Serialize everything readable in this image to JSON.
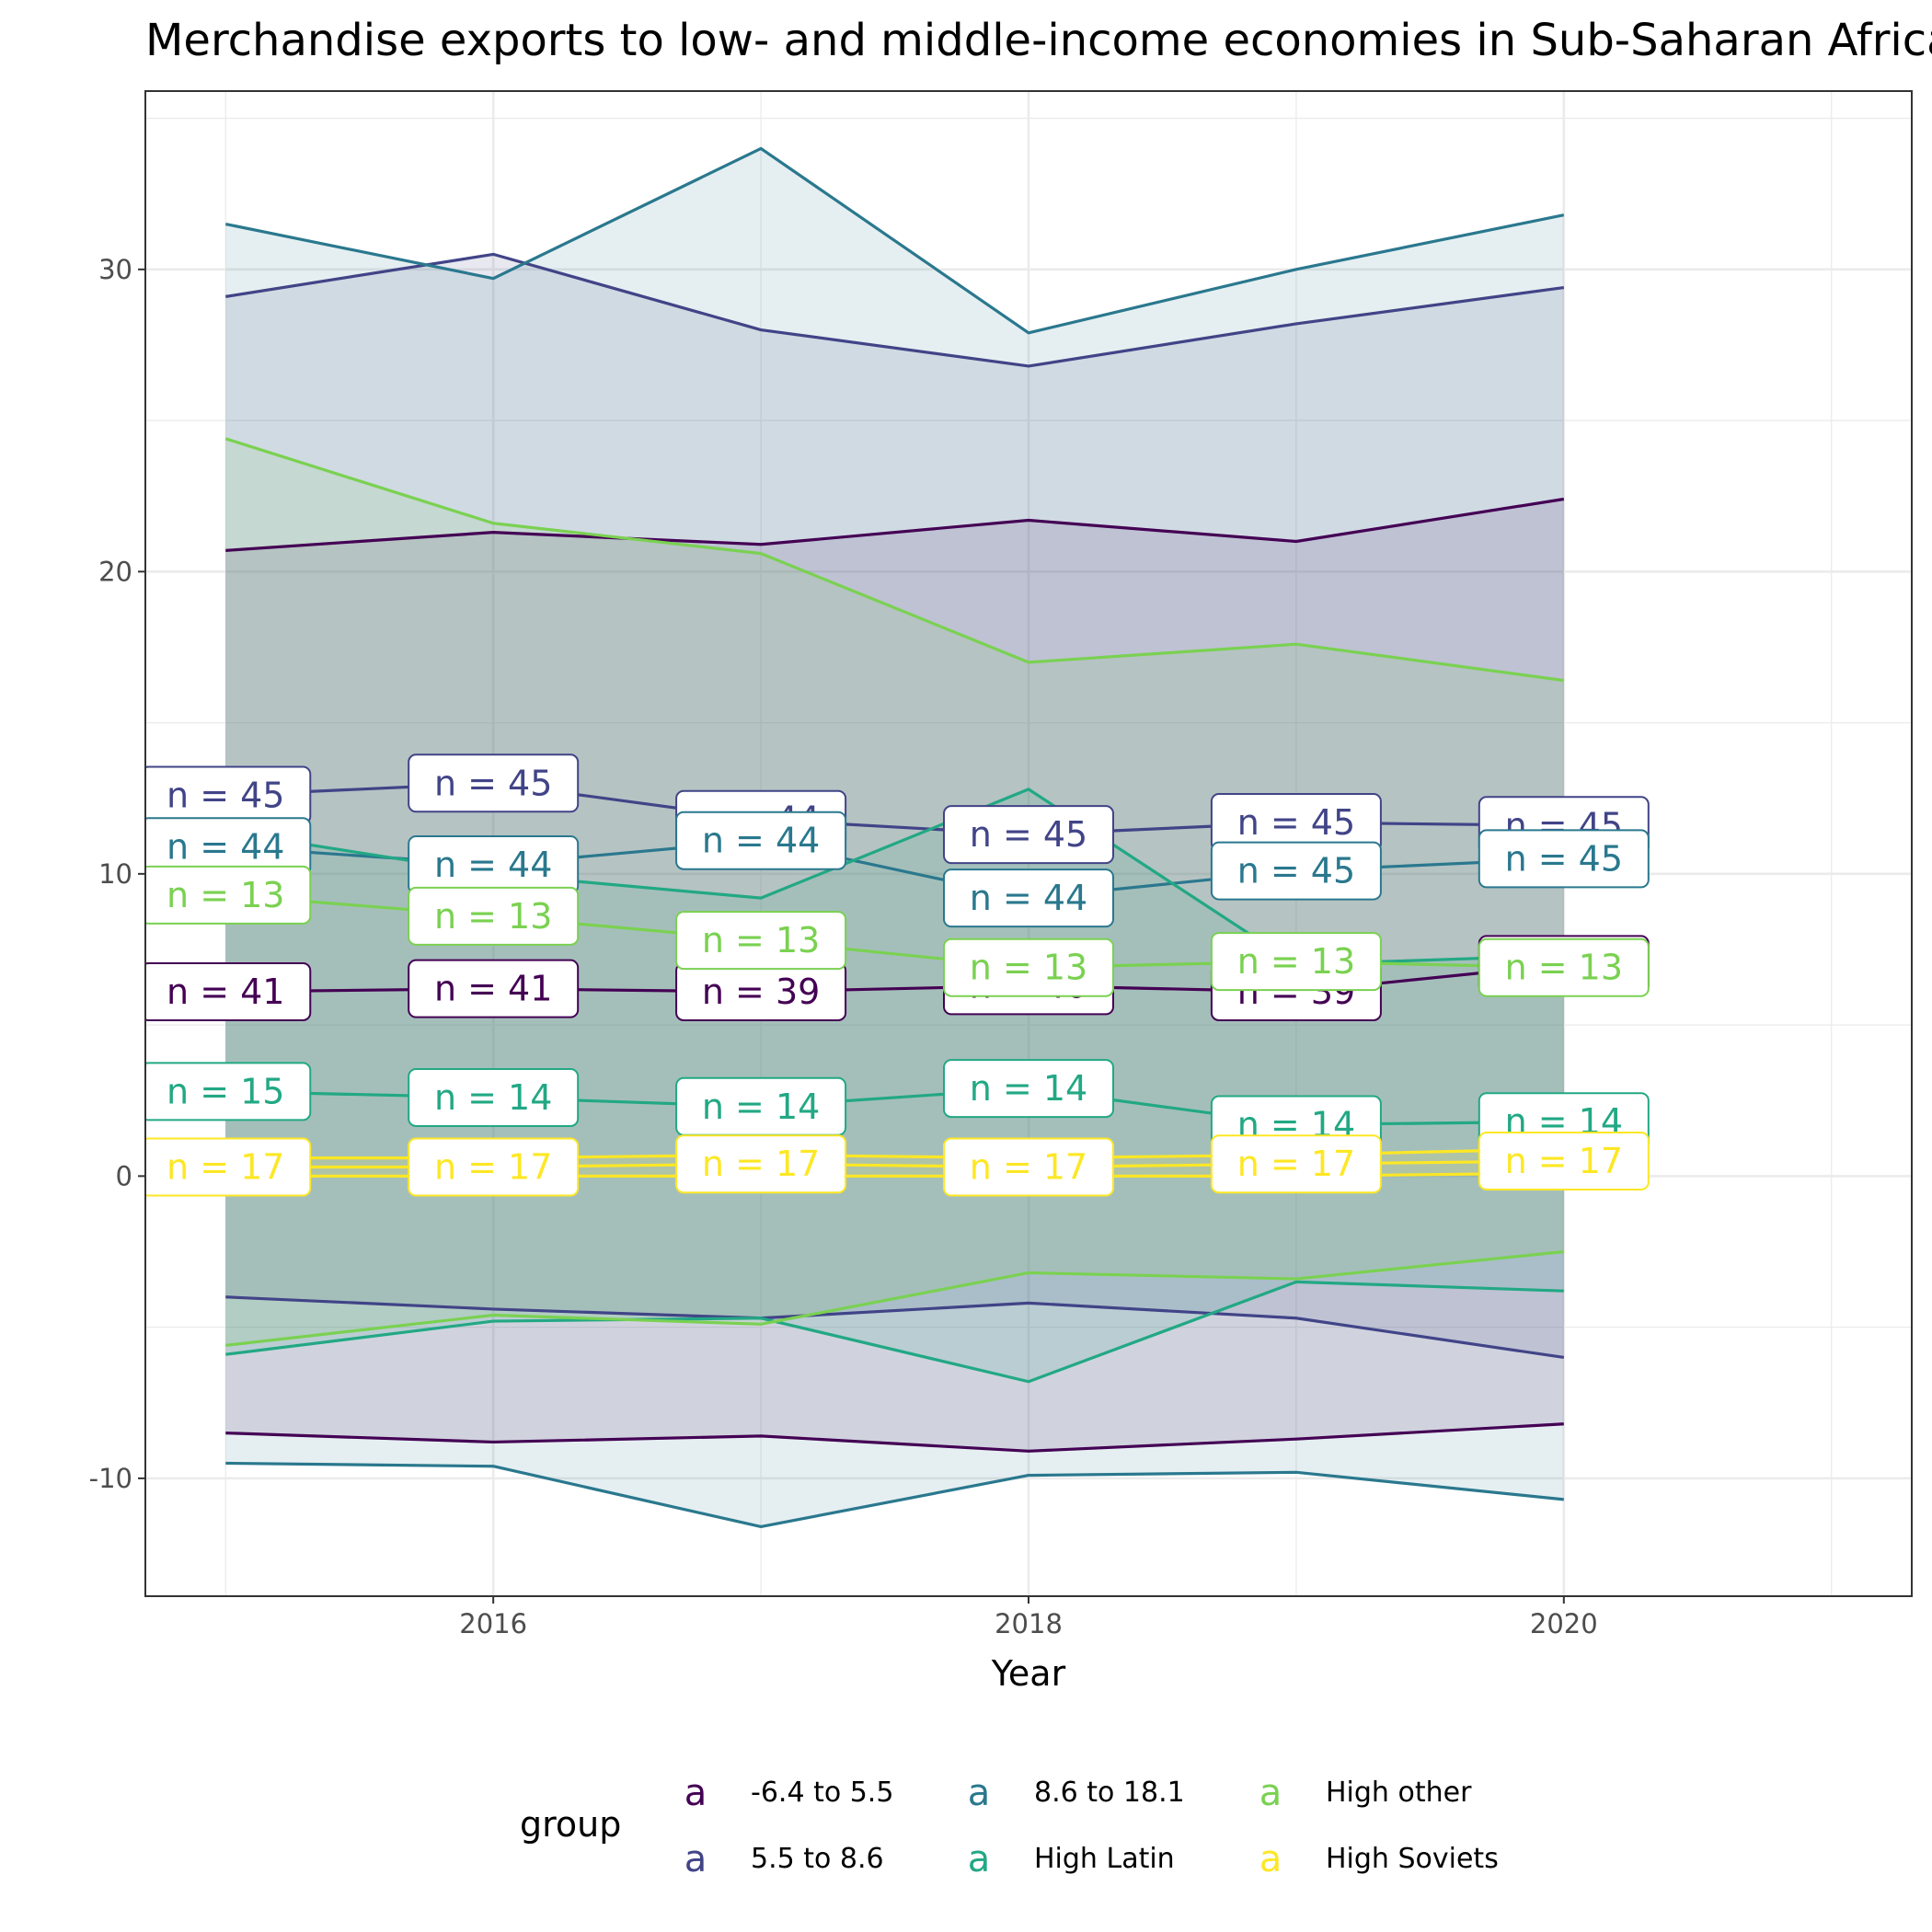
{
  "chart_data": {
    "type": "line",
    "title": "Merchandise exports to low- and middle-income economies in Sub-Saharan Africa",
    "xlabel": "Year",
    "ylabel": "",
    "xlim": [
      2014.7,
      2021.3
    ],
    "ylim": [
      -13.9,
      35.9
    ],
    "x_ticks": [
      2016,
      2018,
      2020
    ],
    "y_ticks": [
      -10,
      0,
      10,
      20,
      30
    ],
    "grid": true,
    "legend": {
      "title": "group",
      "placement": "bottom",
      "key_glyph": "a"
    },
    "x": [
      2015,
      2016,
      2017,
      2018,
      2019,
      2020
    ],
    "series": [
      {
        "name": "-6.4 to 5.5",
        "color": "#440154",
        "mean": [
          6.1,
          6.2,
          6.1,
          6.3,
          6.1,
          7.0
        ],
        "upper": [
          20.7,
          21.3,
          20.9,
          21.7,
          21.0,
          22.4
        ],
        "lower": [
          -8.5,
          -8.8,
          -8.6,
          -9.1,
          -8.7,
          -8.2
        ],
        "n": [
          41,
          41,
          39,
          40,
          39,
          40
        ]
      },
      {
        "name": "5.5 to 8.6",
        "color": "#414487",
        "mean": [
          12.6,
          13.0,
          11.8,
          11.3,
          11.7,
          11.6
        ],
        "upper": [
          29.1,
          30.5,
          28.0,
          26.8,
          28.2,
          29.4
        ],
        "lower": [
          -4.0,
          -4.4,
          -4.7,
          -4.2,
          -4.7,
          -6.0
        ],
        "n": [
          45,
          45,
          44,
          45,
          45,
          45
        ]
      },
      {
        "name": "8.6 to 18.1",
        "color": "#2A788E",
        "mean": [
          10.9,
          10.3,
          11.1,
          9.2,
          10.1,
          10.5
        ],
        "upper": [
          31.5,
          29.7,
          34.0,
          27.9,
          30.0,
          31.8
        ],
        "lower": [
          -9.5,
          -9.6,
          -11.6,
          -9.9,
          -9.8,
          -10.7
        ],
        "n": [
          44,
          44,
          44,
          44,
          45,
          45
        ]
      },
      {
        "name": "High Latin",
        "color": "#22A884",
        "mean": [
          2.8,
          2.6,
          2.3,
          2.9,
          1.7,
          1.8
        ],
        "upper": [
          11.4,
          10.0,
          9.2,
          12.8,
          7.0,
          7.3
        ],
        "lower": [
          -5.9,
          -4.8,
          -4.7,
          -6.8,
          -3.5,
          -3.8
        ],
        "n": [
          15,
          14,
          14,
          14,
          14,
          14
        ]
      },
      {
        "name": "High other",
        "color": "#7AD151",
        "mean": [
          9.3,
          8.6,
          7.8,
          6.9,
          7.1,
          6.9
        ],
        "upper": [
          24.4,
          21.6,
          20.6,
          17.0,
          17.6,
          16.4
        ],
        "lower": [
          -5.6,
          -4.6,
          -4.9,
          -3.2,
          -3.4,
          -2.5
        ],
        "n": [
          13,
          13,
          13,
          13,
          13,
          13
        ]
      },
      {
        "name": "High Soviets",
        "color": "#FDE725",
        "mean": [
          0.3,
          0.3,
          0.4,
          0.3,
          0.4,
          0.5
        ],
        "upper": [
          0.6,
          0.6,
          0.7,
          0.6,
          0.7,
          0.9
        ],
        "lower": [
          0.0,
          0.0,
          0.0,
          0.0,
          0.0,
          0.1
        ],
        "n": [
          17,
          17,
          17,
          17,
          17,
          17
        ]
      }
    ]
  }
}
